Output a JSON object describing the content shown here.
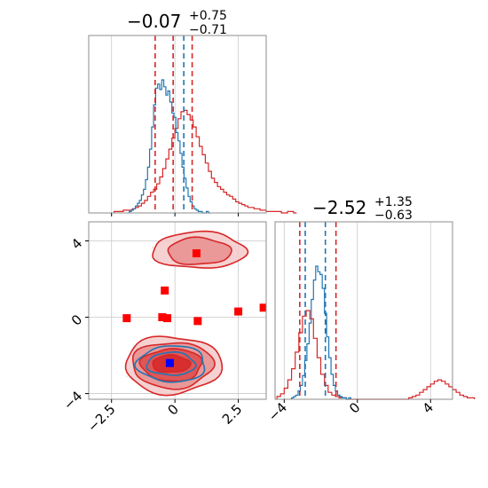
{
  "colors": {
    "red": "#d62728",
    "blue": "#1f77b4",
    "marker_blue": "#0000ff",
    "marker_red": "#ff0000"
  },
  "chart_data": [
    {
      "panel": "marginal-x",
      "type": "histogram",
      "title": {
        "main": "−0.07",
        "sup": "+0.75",
        "sub": "−0.71"
      },
      "xlim": [
        -3.4,
        3.6
      ],
      "xticks": [
        -2.5,
        0.0,
        2.5
      ],
      "grid": true,
      "series": [
        {
          "name": "",
          "color": "#d62728",
          "bin_start": -2.4,
          "bin_width": 0.12,
          "counts": [
            1,
            1,
            1,
            2,
            2,
            2,
            3,
            4,
            5,
            7,
            9,
            12,
            15,
            17,
            21,
            26,
            32,
            39,
            46,
            54,
            61,
            68,
            73,
            74,
            71,
            67,
            62,
            55,
            48,
            42,
            36,
            30,
            25,
            22,
            19,
            17,
            15,
            13,
            12,
            10,
            8,
            7,
            6,
            5,
            4,
            4,
            3,
            3,
            2,
            2,
            1,
            1,
            1,
            1,
            1,
            0,
            0,
            1,
            1,
            0
          ]
        },
        {
          "name": "",
          "color": "#1f77b4",
          "bin_start": -1.8,
          "bin_width": 0.08,
          "counts": [
            1,
            2,
            3,
            5,
            7,
            9,
            13,
            17,
            24,
            33,
            46,
            62,
            78,
            90,
            93,
            89,
            96,
            91,
            85,
            88,
            80,
            72,
            69,
            58,
            52,
            43,
            33,
            25,
            18,
            12,
            8,
            5,
            3,
            2,
            1,
            1,
            0,
            0,
            1,
            0
          ]
        }
      ],
      "quantiles": [
        {
          "value": -0.78,
          "color": "#d62728"
        },
        {
          "value": -0.07,
          "color": "#d62728"
        },
        {
          "value": 0.68,
          "color": "#d62728"
        },
        {
          "value": 0.35,
          "color": "#1f77b4"
        }
      ]
    },
    {
      "panel": "marginal-y",
      "type": "histogram",
      "title": {
        "main": "−2.52",
        "sup": "+1.35",
        "sub": "−0.63"
      },
      "xlim": [
        -4.5,
        5.2
      ],
      "xticks": [
        -4,
        0,
        4
      ],
      "grid": true,
      "series": [
        {
          "name": "",
          "color": "#d62728",
          "bin_start": -4.4,
          "bin_width": 0.2,
          "counts": [
            2,
            4,
            8,
            14,
            22,
            34,
            48,
            60,
            64,
            58,
            44,
            30,
            18,
            10,
            5,
            3,
            2,
            1,
            1,
            0,
            0,
            0,
            0,
            0,
            0,
            0,
            0,
            0,
            0,
            0,
            0,
            0,
            0,
            0,
            0,
            0,
            1,
            2,
            3,
            5,
            7,
            9,
            11,
            13,
            14,
            13,
            11,
            9,
            7,
            5,
            3,
            2,
            1,
            1
          ]
        },
        {
          "name": "",
          "color": "#1f77b4",
          "bin_start": -3.6,
          "bin_width": 0.12,
          "counts": [
            1,
            2,
            3,
            6,
            10,
            17,
            28,
            40,
            55,
            72,
            86,
            96,
            92,
            90,
            80,
            62,
            45,
            30,
            18,
            10,
            6,
            3,
            2,
            1,
            1,
            0,
            1
          ]
        }
      ],
      "quantiles": [
        {
          "value": -3.15,
          "color": "#d62728"
        },
        {
          "value": -1.17,
          "color": "#d62728"
        },
        {
          "value": -2.85,
          "color": "#1f77b4"
        },
        {
          "value": -1.75,
          "color": "#1f77b4"
        }
      ]
    },
    {
      "panel": "joint",
      "type": "scatter",
      "xlim": [
        -3.4,
        3.6
      ],
      "ylim": [
        -4.3,
        5.0
      ],
      "xticks": [
        -2.5,
        0.0,
        2.5
      ],
      "yticks": [
        -4,
        0,
        4
      ],
      "grid": true,
      "red_markers": [
        {
          "x": 0.85,
          "y": 3.35
        },
        {
          "x": -0.4,
          "y": 1.4
        },
        {
          "x": -1.9,
          "y": -0.05
        },
        {
          "x": -0.5,
          "y": 0.0
        },
        {
          "x": -0.3,
          "y": -0.05
        },
        {
          "x": 0.9,
          "y": -0.2
        },
        {
          "x": 2.5,
          "y": 0.3
        },
        {
          "x": 3.5,
          "y": 0.5
        }
      ],
      "blue_marker": {
        "x": -0.2,
        "y": -2.4
      },
      "contours": [
        {
          "color": "#d62728",
          "fill": "#f4c9c9",
          "cx": 0.95,
          "cy": 3.5,
          "rx": 1.85,
          "ry": 0.95
        },
        {
          "color": "#d62728",
          "fill": "#e88e8e",
          "cx": 0.95,
          "cy": 3.45,
          "rx": 1.25,
          "ry": 0.7
        },
        {
          "color": "#d62728",
          "fill": "#f4c9c9",
          "cx": -0.08,
          "cy": -2.5,
          "rx": 1.9,
          "ry": 1.5
        },
        {
          "color": "#d62728",
          "fill": "#e88e8e",
          "cx": -0.1,
          "cy": -2.5,
          "rx": 1.6,
          "ry": 1.2
        },
        {
          "color": "#d62728",
          "fill": "#dd4a4a",
          "cx": -0.12,
          "cy": -2.5,
          "rx": 1.2,
          "ry": 0.85
        },
        {
          "color": "#1f77b4",
          "fill": "none",
          "cx": -0.12,
          "cy": -2.45,
          "rx": 1.35,
          "ry": 0.95
        },
        {
          "color": "#1f77b4",
          "fill": "none",
          "cx": -0.15,
          "cy": -2.45,
          "rx": 0.95,
          "ry": 0.6
        },
        {
          "color": "#d62728",
          "fill": "#d62728",
          "cx": -0.15,
          "cy": -2.45,
          "rx": 0.75,
          "ry": 0.45
        }
      ]
    }
  ]
}
